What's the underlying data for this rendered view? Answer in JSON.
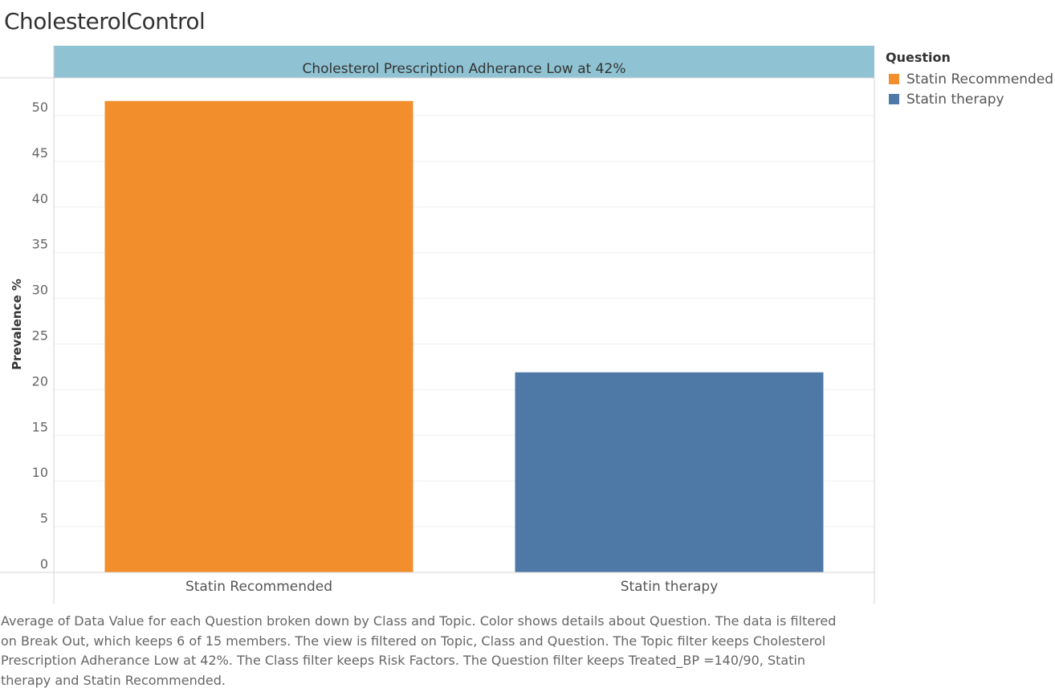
{
  "page": {
    "title": "CholesterolControl"
  },
  "legend": {
    "title": "Question",
    "items": [
      {
        "label": "Statin Recommended",
        "color": "#f28e2b"
      },
      {
        "label": "Statin therapy",
        "color": "#4e79a7"
      }
    ]
  },
  "chart_data": {
    "type": "bar",
    "title": "",
    "panel_header": "Cholesterol Prescription Adherance Low at 42%",
    "panel_header_color": "#8fc3d3",
    "categories": [
      "Statin Recommended",
      "Statin therapy"
    ],
    "values": [
      51.6,
      21.9
    ],
    "colors": [
      "#f28e2b",
      "#4e79a7"
    ],
    "xlabel": "",
    "ylabel": "Prevalence %",
    "ylim": [
      0,
      54.1
    ],
    "yticks": [
      0,
      5,
      10,
      15,
      20,
      25,
      30,
      35,
      40,
      45,
      50
    ],
    "grid": true,
    "legend_position": "right"
  },
  "caption": {
    "text": "Average of Data Value for each Question broken down by Class and Topic.  Color shows details about Question. The data is filtered on Break Out, which keeps 6 of 15 members. The view is filtered on Topic, Class and Question. The Topic filter keeps Cholesterol Prescription Adherance Low at 42%. The Class filter keeps Risk Factors. The Question filter keeps Treated_BP =140/90, Statin therapy and Statin Recommended."
  }
}
